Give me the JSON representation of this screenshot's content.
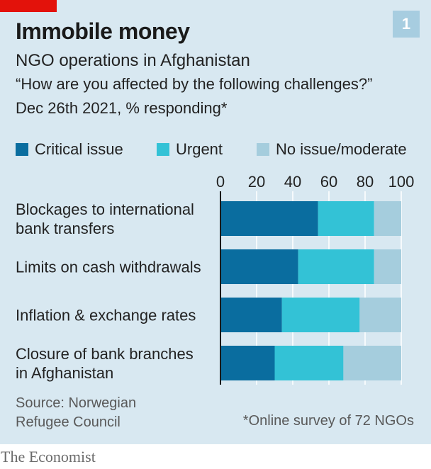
{
  "chart_number": "1",
  "title": "Immobile money",
  "subtitle": "NGO operations in Afghanistan",
  "question": "“How are you affected by the following challenges?”",
  "date_note": "Dec 26th 2021, % responding*",
  "source": "Source: Norwegian Refugee Council",
  "footnote": "*Online survey of 72 NGOs",
  "brand": "The Economist",
  "chart_data": {
    "type": "bar",
    "orientation": "horizontal",
    "stacked": true,
    "categories": [
      [
        "Blockages to international",
        "bank transfers"
      ],
      [
        "Limits on cash withdrawals"
      ],
      [
        "Inflation & exchange rates"
      ],
      [
        "Closure of bank branches",
        "in Afghanistan"
      ]
    ],
    "series": [
      {
        "name": "Critical issue",
        "color": "#0a6d9f",
        "values": [
          54,
          43,
          34,
          30
        ]
      },
      {
        "name": "Urgent",
        "color": "#33c2d6",
        "values": [
          31,
          42,
          43,
          38
        ]
      },
      {
        "name": "No issue/moderate",
        "color": "#a5cddd",
        "values": [
          15,
          15,
          23,
          32
        ]
      }
    ],
    "xlim": [
      0,
      100
    ],
    "xticks": [
      "0",
      "20",
      "40",
      "60",
      "80",
      "100"
    ],
    "xtick_values": [
      0,
      20,
      40,
      60,
      80,
      100
    ],
    "axis_position": "top",
    "grid": true,
    "legend_placement": "top"
  }
}
